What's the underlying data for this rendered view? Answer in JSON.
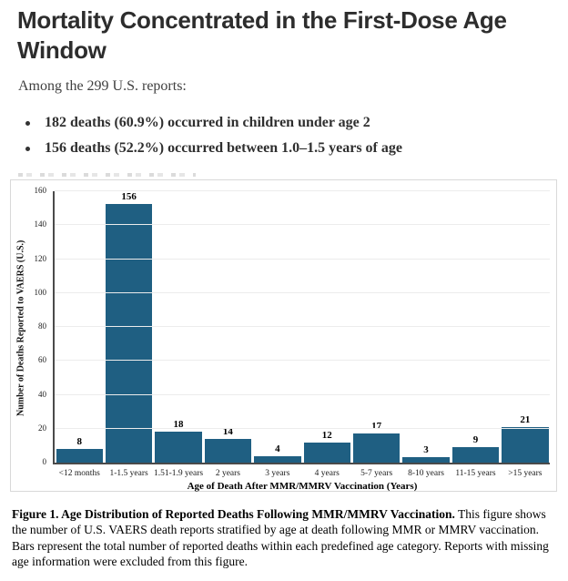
{
  "page": {
    "title": "Mortality Concentrated in the First-Dose Age Window",
    "intro": "Among the 299 U.S. reports:",
    "bullets": [
      "182 deaths (60.9%) occurred in children under age 2",
      "156 deaths (52.2%) occurred between 1.0–1.5 years of age"
    ]
  },
  "chart_data": {
    "type": "bar",
    "categories": [
      "<12 months",
      "1-1.5 years",
      "1.51-1.9 years",
      "2 years",
      "3 years",
      "4 years",
      "5-7 years",
      "8-10 years",
      "11-15 years",
      ">15 years"
    ],
    "values": [
      8,
      156,
      18,
      14,
      4,
      12,
      17,
      3,
      9,
      21
    ],
    "xlabel": "Age of Death After MMR/MMRV Vaccination (Years)",
    "ylabel": "Number of Deaths Reported to VAERS (U.S.)",
    "ylim": [
      0,
      160
    ],
    "ytick_step": 20,
    "grid": true,
    "legend": "none",
    "bar_color": "#1f5f82"
  },
  "caption": {
    "bold": "Figure 1. Age Distribution of Reported Deaths Following MMR/MMRV Vaccination.",
    "rest": " This figure shows the number of U.S. VAERS death reports stratified by age at death following MMR or MMRV vaccination. Bars represent the total number of reported deaths within each predefined age category. Reports with missing age information were excluded from this figure."
  }
}
